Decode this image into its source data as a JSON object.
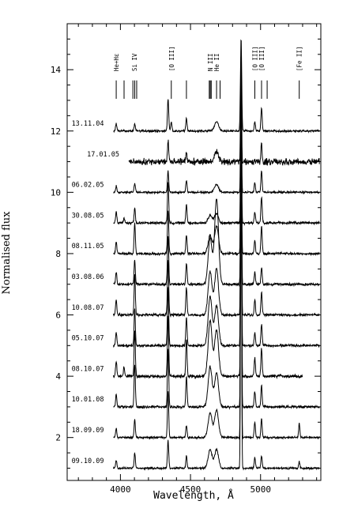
{
  "chart_data": {
    "type": "line",
    "title": "",
    "xlabel": "Wavelength, Å",
    "ylabel": "Normalised flux",
    "xlim": [
      3620,
      5430
    ],
    "ylim": [
      0.6,
      15.5
    ],
    "x_ticks": [
      4000,
      4500,
      5000
    ],
    "x_tick_labels": [
      "4000",
      "4500",
      "5000"
    ],
    "y_ticks": [
      2,
      4,
      6,
      8,
      10,
      12,
      14
    ],
    "y_tick_labels": [
      "2",
      "4",
      "6",
      "8",
      "10",
      "12",
      "14"
    ],
    "grid": false,
    "legend": "none",
    "line_identifications": [
      {
        "label": "He+Hε",
        "x": 3970,
        "ticks": [
          3970
        ],
        "rotated": true,
        "bracket": false
      },
      {
        "label": "",
        "x": 4026,
        "ticks": [
          4026
        ],
        "rotated": false,
        "bracket": false
      },
      {
        "label": "Si IV",
        "x": 4098,
        "ticks": [
          4089,
          4102,
          4116
        ],
        "rotated": true,
        "bracket": false
      },
      {
        "label": "[O III]",
        "x": 4363,
        "ticks": [
          4363
        ],
        "rotated": true,
        "bracket": true
      },
      {
        "label": "",
        "x": 4471,
        "ticks": [
          4471
        ],
        "rotated": false,
        "bracket": false
      },
      {
        "label": "N III",
        "x": 4640,
        "ticks": [
          4634,
          4641,
          4648
        ],
        "rotated": true,
        "bracket": false
      },
      {
        "label": "He II",
        "x": 4686,
        "ticks": [
          4686
        ],
        "rotated": true,
        "bracket": false
      },
      {
        "label": "",
        "x": 4711,
        "ticks": [
          4711
        ],
        "rotated": false,
        "bracket": false
      },
      {
        "label": "[O III]",
        "x": 4959,
        "ticks": [
          4959
        ],
        "rotated": true,
        "bracket": true
      },
      {
        "label": "[O III]",
        "x": 5007,
        "ticks": [
          5007
        ],
        "rotated": true,
        "bracket": true
      },
      {
        "label": "",
        "x": 5047,
        "ticks": [
          5047
        ],
        "rotated": false,
        "bracket": false
      },
      {
        "label": "[Fe II]",
        "x": 5276,
        "ticks": [
          5276
        ],
        "rotated": true,
        "bracket": true
      }
    ],
    "series": [
      {
        "name": "13.11.04",
        "offset": 12.0,
        "x_range": [
          3950,
          5420
        ],
        "noise": 0.04,
        "lines": [
          [
            3970,
            0.25
          ],
          [
            4102,
            0.25
          ],
          [
            4340,
            1.05
          ],
          [
            4363,
            0.3
          ],
          [
            4471,
            0.4
          ],
          [
            4686,
            0.3
          ],
          [
            4861,
            3.0
          ],
          [
            4959,
            0.3
          ],
          [
            5007,
            0.75
          ]
        ]
      },
      {
        "name": "17.01.05",
        "offset": 11.0,
        "x_range": [
          4060,
          5420
        ],
        "noise": 0.13,
        "lines": [
          [
            4340,
            0.7
          ],
          [
            4471,
            0.3
          ],
          [
            4686,
            0.35
          ],
          [
            4861,
            3.5
          ],
          [
            5007,
            0.55
          ]
        ]
      },
      {
        "name": "06.02.05",
        "offset": 10.0,
        "x_range": [
          3950,
          5420
        ],
        "noise": 0.04,
        "lines": [
          [
            3970,
            0.2
          ],
          [
            4102,
            0.3
          ],
          [
            4340,
            0.7
          ],
          [
            4471,
            0.4
          ],
          [
            4686,
            0.25
          ],
          [
            4861,
            4.0
          ],
          [
            4959,
            0.3
          ],
          [
            5007,
            0.7
          ]
        ]
      },
      {
        "name": "30.08.05",
        "offset": 9.0,
        "x_range": [
          3950,
          5420
        ],
        "noise": 0.05,
        "lines": [
          [
            3970,
            0.35
          ],
          [
            4026,
            0.15
          ],
          [
            4102,
            0.5
          ],
          [
            4340,
            1.3
          ],
          [
            4471,
            0.6
          ],
          [
            4640,
            0.25
          ],
          [
            4686,
            0.3
          ],
          [
            4861,
            5.0
          ],
          [
            4959,
            0.35
          ],
          [
            5007,
            0.85
          ]
        ]
      },
      {
        "name": "08.11.05",
        "offset": 8.0,
        "x_range": [
          3950,
          5420
        ],
        "noise": 0.05,
        "lines": [
          [
            3970,
            0.4
          ],
          [
            4102,
            1.0
          ],
          [
            4340,
            1.4
          ],
          [
            4471,
            0.6
          ],
          [
            4640,
            0.6
          ],
          [
            4686,
            0.9
          ],
          [
            4861,
            6.0
          ],
          [
            4959,
            0.45
          ],
          [
            5007,
            0.9
          ]
        ]
      },
      {
        "name": "03.08.06",
        "offset": 7.0,
        "x_range": [
          3950,
          5420
        ],
        "noise": 0.05,
        "lines": [
          [
            3970,
            0.4
          ],
          [
            4102,
            0.8
          ],
          [
            4340,
            1.6
          ],
          [
            4471,
            0.7
          ],
          [
            4640,
            1.5
          ],
          [
            4686,
            2.8
          ],
          [
            4861,
            7.0
          ],
          [
            4959,
            0.4
          ],
          [
            5007,
            0.55
          ]
        ]
      },
      {
        "name": "10.08.07",
        "offset": 6.0,
        "x_range": [
          3950,
          5420
        ],
        "noise": 0.05,
        "lines": [
          [
            3970,
            0.5
          ],
          [
            4102,
            1.3
          ],
          [
            4340,
            1.8
          ],
          [
            4471,
            0.9
          ],
          [
            4640,
            1.4
          ],
          [
            4686,
            1.5
          ],
          [
            4861,
            7.5
          ],
          [
            4959,
            0.5
          ],
          [
            5007,
            0.75
          ]
        ]
      },
      {
        "name": "05.10.07",
        "offset": 5.0,
        "x_range": [
          3950,
          5420
        ],
        "noise": 0.05,
        "lines": [
          [
            3970,
            0.45
          ],
          [
            4102,
            1.2
          ],
          [
            4340,
            1.9
          ],
          [
            4471,
            0.9
          ],
          [
            4640,
            1.6
          ],
          [
            4686,
            1.3
          ],
          [
            4861,
            8.5
          ],
          [
            4959,
            0.45
          ],
          [
            5007,
            0.7
          ]
        ]
      },
      {
        "name": "08.10.07",
        "offset": 4.0,
        "x_range": [
          3950,
          5300
        ],
        "noise": 0.06,
        "lines": [
          [
            3970,
            0.5
          ],
          [
            4026,
            0.3
          ],
          [
            4102,
            1.5
          ],
          [
            4340,
            2.0
          ],
          [
            4471,
            1.2
          ],
          [
            4640,
            1.8
          ],
          [
            4686,
            1.5
          ],
          [
            4861,
            9.5
          ],
          [
            4959,
            0.6
          ],
          [
            5007,
            0.9
          ]
        ]
      },
      {
        "name": "10.01.08",
        "offset": 3.0,
        "x_range": [
          3950,
          5420
        ],
        "noise": 0.05,
        "lines": [
          [
            3970,
            0.4
          ],
          [
            4102,
            1.4
          ],
          [
            4340,
            1.9
          ],
          [
            4471,
            1.0
          ],
          [
            4640,
            1.3
          ],
          [
            4686,
            1.1
          ],
          [
            4861,
            10.0
          ],
          [
            4959,
            0.5
          ],
          [
            5007,
            0.7
          ]
        ]
      },
      {
        "name": "18.09.09",
        "offset": 2.0,
        "x_range": [
          3950,
          5420
        ],
        "noise": 0.04,
        "lines": [
          [
            3970,
            0.3
          ],
          [
            4102,
            0.6
          ],
          [
            4340,
            1.5
          ],
          [
            4471,
            0.4
          ],
          [
            4640,
            0.8
          ],
          [
            4686,
            0.9
          ],
          [
            4861,
            11.0
          ],
          [
            4959,
            0.5
          ],
          [
            5007,
            0.6
          ],
          [
            5276,
            0.45
          ]
        ]
      },
      {
        "name": "09.10.09",
        "offset": 1.0,
        "x_range": [
          3950,
          5420
        ],
        "noise": 0.04,
        "lines": [
          [
            3970,
            0.25
          ],
          [
            4102,
            0.5
          ],
          [
            4340,
            0.9
          ],
          [
            4471,
            0.4
          ],
          [
            4640,
            0.6
          ],
          [
            4686,
            0.6
          ],
          [
            4861,
            13.6
          ],
          [
            4959,
            0.35
          ],
          [
            5007,
            0.4
          ],
          [
            5276,
            0.2
          ]
        ]
      }
    ]
  }
}
